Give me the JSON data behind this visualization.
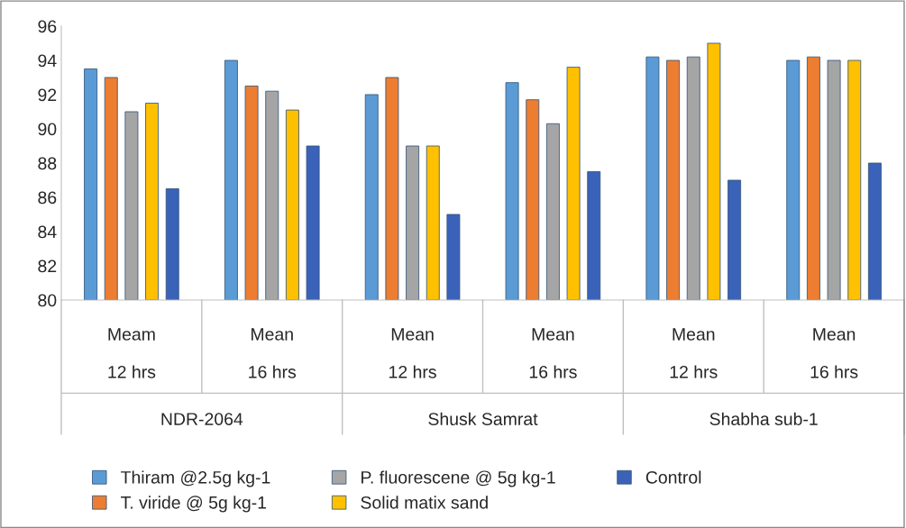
{
  "chart_data": {
    "type": "bar",
    "categories": [
      "Meam\n\n12 hrs",
      "Mean\n\n16 hrs",
      "Mean\n\n12 hrs",
      "Mean\n\n16 hrs",
      "Mean\n\n12 hrs",
      "Mean\n\n16 hrs"
    ],
    "annotations": [
      "NDR-2064",
      "Shusk Samrat",
      "Shabha sub-1"
    ],
    "series": [
      {
        "name": "Thiram @2.5g kg-1",
        "color": "#5b9bd5",
        "values": [
          93.5,
          94,
          92,
          92.7,
          94.2,
          94
        ]
      },
      {
        "name": "T. viride @ 5g kg-1",
        "color": "#ed7d31",
        "values": [
          93,
          92.5,
          93,
          91.7,
          94,
          94.2
        ]
      },
      {
        "name": "P. fluorescene @ 5g kg-1",
        "color": "#a5a5a5",
        "values": [
          91,
          92.2,
          89,
          90.3,
          94.2,
          94
        ]
      },
      {
        "name": "Solid matix sand",
        "color": "#ffc000",
        "values": [
          91.5,
          91.1,
          89,
          93.6,
          95,
          94
        ]
      },
      {
        "name": "Control",
        "color": "#3a62b8",
        "values": [
          86.5,
          89,
          85,
          87.5,
          87,
          88
        ]
      }
    ],
    "ylim": [
      80,
      96
    ],
    "yticks": [
      80,
      82,
      84,
      86,
      88,
      90,
      92,
      94,
      96
    ],
    "grid": false,
    "legend": "bottom"
  }
}
